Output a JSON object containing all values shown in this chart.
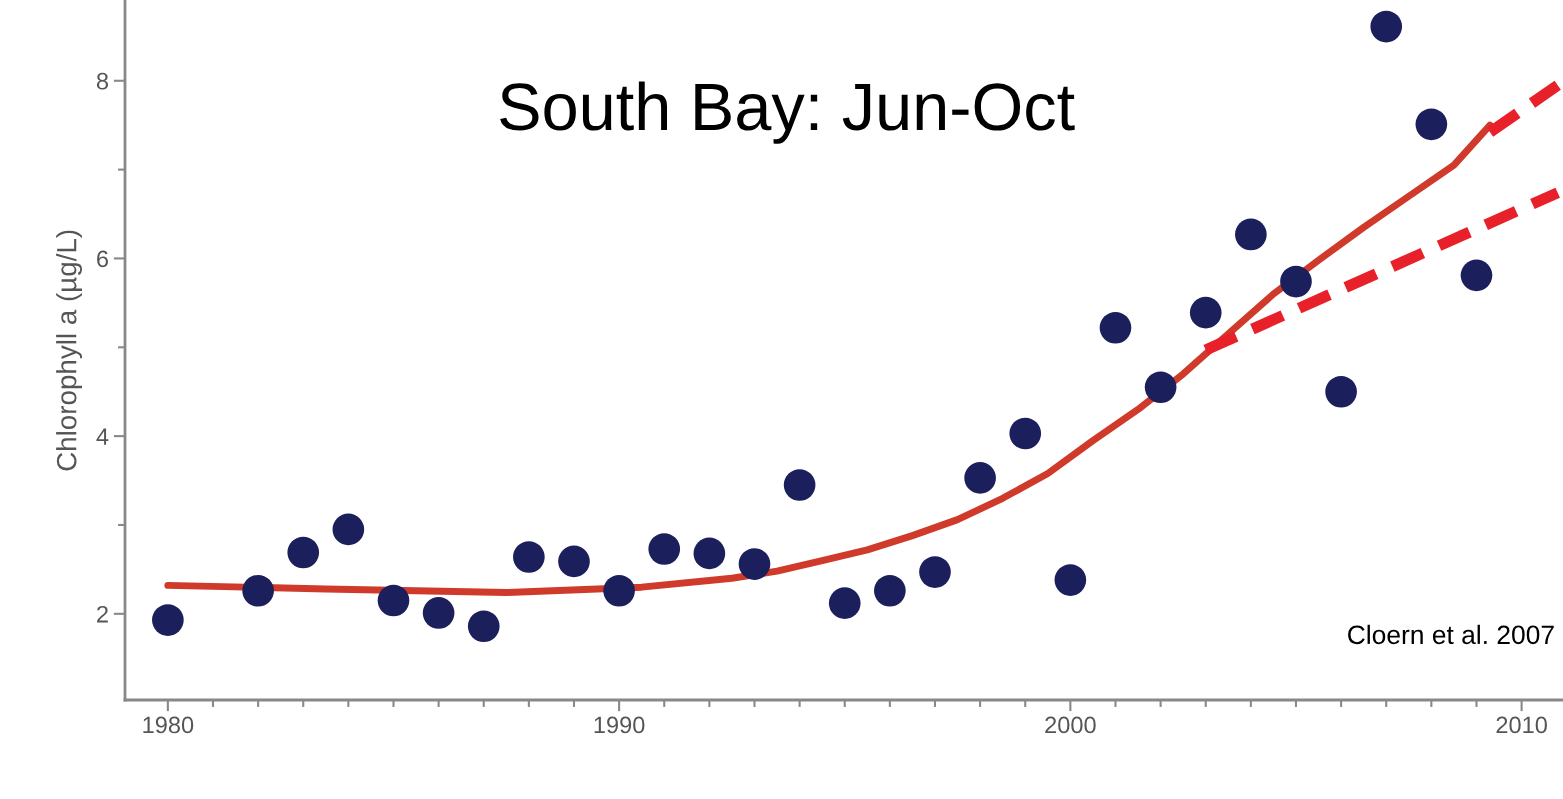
{
  "chart_data": {
    "type": "scatter",
    "title": "South Bay: Jun-Oct",
    "ylabel": "Chlorophyll a (µg/L)",
    "xlim": [
      1979.05,
      2010.9
    ],
    "ylim": [
      1.03,
      8.9
    ],
    "xticks": [
      1980,
      {
        "value": 1981,
        "label": null
      },
      {
        "value": 1982,
        "label": null
      },
      {
        "value": 1983,
        "label": null
      },
      {
        "value": 1984,
        "label": null
      },
      {
        "value": 1985,
        "label": null
      },
      {
        "value": 1986,
        "label": null
      },
      {
        "value": 1987,
        "label": null
      },
      {
        "value": 1988,
        "label": null
      },
      {
        "value": 1989,
        "label": null
      },
      1990,
      {
        "value": 1991,
        "label": null
      },
      {
        "value": 1992,
        "label": null
      },
      {
        "value": 1993,
        "label": null
      },
      {
        "value": 1994,
        "label": null
      },
      {
        "value": 1995,
        "label": null
      },
      {
        "value": 1996,
        "label": null
      },
      {
        "value": 1997,
        "label": null
      },
      {
        "value": 1998,
        "label": null
      },
      {
        "value": 1999,
        "label": null
      },
      2000,
      {
        "value": 2001,
        "label": null
      },
      {
        "value": 2002,
        "label": null
      },
      {
        "value": 2003,
        "label": null
      },
      {
        "value": 2004,
        "label": null
      },
      {
        "value": 2005,
        "label": null
      },
      {
        "value": 2006,
        "label": null
      },
      {
        "value": 2007,
        "label": null
      },
      {
        "value": 2008,
        "label": null
      },
      {
        "value": 2009,
        "label": null
      },
      2010
    ],
    "yticks": [
      2,
      {
        "value": 3,
        "label": null
      },
      4,
      {
        "value": 5,
        "label": null
      },
      6,
      {
        "value": 7,
        "label": null
      },
      8
    ],
    "grid": false,
    "legend": false,
    "annotations": [
      "Cloern et al. 2007"
    ],
    "series": [
      {
        "color": "#1b1f5c",
        "marker": "circle",
        "x": [
          1980,
          1982,
          1983,
          1984,
          1985,
          1986,
          1987,
          1988,
          1989,
          1990,
          1991,
          1992,
          1993,
          1994,
          1995,
          1996,
          1997,
          1998,
          1999,
          2000,
          2001,
          2002,
          2003,
          2004,
          2005,
          2006,
          2007,
          2008,
          2009
        ],
        "values": [
          1.93,
          2.26,
          2.69,
          2.95,
          2.15,
          2.01,
          1.86,
          2.64,
          2.59,
          2.26,
          2.73,
          2.68,
          2.56,
          3.45,
          2.12,
          2.26,
          2.47,
          3.53,
          4.03,
          2.38,
          5.22,
          4.55,
          5.39,
          6.27,
          5.74,
          4.5,
          8.61,
          7.51,
          5.81
        ]
      },
      {
        "type": "line",
        "color": "#d03a2a",
        "line_style": "solid",
        "x": [
          1980,
          1983.5,
          1987.5,
          1990.5,
          1992.5,
          1993.5,
          1994.5,
          1995.5,
          1996.5,
          1997.5,
          1998.5,
          1999.5,
          2000.5,
          2001.5,
          2002.5,
          2003.5,
          2004.5,
          2005.5,
          2006.5,
          2007.5,
          2008.5,
          2009.3
        ],
        "values": [
          2.32,
          2.28,
          2.24,
          2.3,
          2.4,
          2.48,
          2.6,
          2.72,
          2.88,
          3.06,
          3.3,
          3.58,
          3.95,
          4.3,
          4.7,
          5.15,
          5.6,
          5.98,
          6.35,
          6.7,
          7.05,
          7.5
        ]
      },
      {
        "type": "line",
        "color": "#e8202a",
        "line_style": "dashed",
        "x": [
          2009.3,
          2010.8
        ],
        "values": [
          7.42,
          7.95
        ]
      },
      {
        "type": "line",
        "color": "#e8202a",
        "line_style": "dashed",
        "x": [
          2003,
          2010.8
        ],
        "values": [
          4.97,
          6.74
        ]
      }
    ]
  }
}
